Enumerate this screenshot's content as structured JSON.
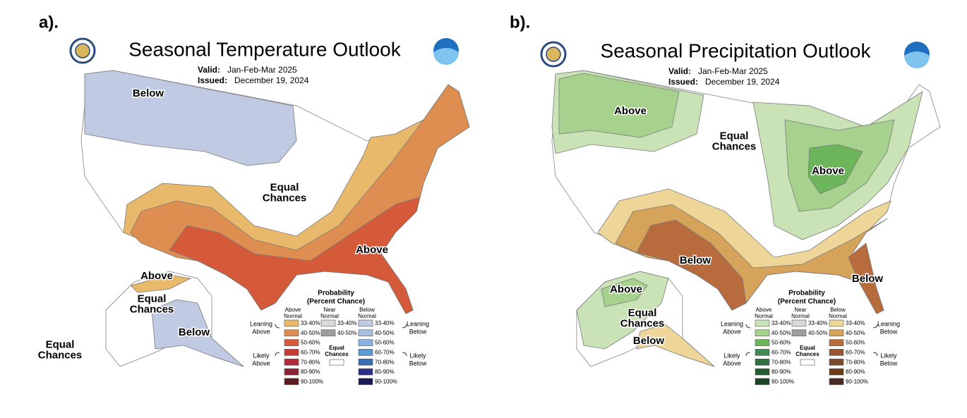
{
  "panels": [
    {
      "label": "a).",
      "title": "Seasonal Temperature Outlook",
      "valid_label": "Valid:",
      "valid": "Jan-Feb-Mar 2025",
      "issued_label": "Issued:",
      "issued": "December 19, 2024",
      "regions": [
        {
          "lines": [
            "Below"
          ]
        },
        {
          "lines": [
            "Equal",
            "Chances"
          ]
        },
        {
          "lines": [
            "Above"
          ]
        },
        {
          "lines": [
            "Above"
          ]
        },
        {
          "lines": [
            "Equal",
            "Chances"
          ]
        },
        {
          "lines": [
            "Below"
          ]
        },
        {
          "lines": [
            "Equal",
            "Chances"
          ]
        }
      ],
      "legend": {
        "title": "Probability",
        "subtitle": "(Percent Chance)",
        "columns": [
          {
            "header": [
              "Above",
              "Normal"
            ],
            "items": [
              {
                "label": "33-40%",
                "color": "#e8b96b"
              },
              {
                "label": "40-50%",
                "color": "#dd8e50"
              },
              {
                "label": "50-60%",
                "color": "#d55a3a"
              },
              {
                "label": "60-70%",
                "color": "#c63b36"
              },
              {
                "label": "70-80%",
                "color": "#b02a3a"
              },
              {
                "label": "80-90%",
                "color": "#8a2233"
              },
              {
                "label": "90-100%",
                "color": "#5c1a1f"
              }
            ]
          },
          {
            "header": [
              "Near",
              "Normal"
            ],
            "items": [
              {
                "label": "33-40%",
                "color": "#d9d9d9"
              },
              {
                "label": "40-50%",
                "color": "#9e9e9e"
              }
            ]
          },
          {
            "header": [
              "Below",
              "Normal"
            ],
            "items": [
              {
                "label": "33-40%",
                "color": "#c0cbe3"
              },
              {
                "label": "40-50%",
                "color": "#a9bfe0"
              },
              {
                "label": "50-60%",
                "color": "#88b3e0"
              },
              {
                "label": "60-70%",
                "color": "#5b9bd5"
              },
              {
                "label": "70-80%",
                "color": "#3a6db0"
              },
              {
                "label": "80-90%",
                "color": "#2d2d8a"
              },
              {
                "label": "90-100%",
                "color": "#1a1a55"
              }
            ]
          }
        ],
        "equal_chances": [
          "Equal",
          "Chances"
        ],
        "left_groups": [
          [
            "Leaning",
            "Above"
          ],
          [
            "Likely",
            "Above"
          ]
        ],
        "right_groups": [
          [
            "Leaning",
            "Below"
          ],
          [
            "Likely",
            "Below"
          ]
        ]
      }
    },
    {
      "label": "b).",
      "title": "Seasonal Precipitation Outlook",
      "valid_label": "Valid:",
      "valid": "Jan-Feb-Mar 2025",
      "issued_label": "Issued:",
      "issued": "December 19, 2024",
      "regions": [
        {
          "lines": [
            "Above"
          ]
        },
        {
          "lines": [
            "Equal",
            "Chances"
          ]
        },
        {
          "lines": [
            "Above"
          ]
        },
        {
          "lines": [
            "Below"
          ]
        },
        {
          "lines": [
            "Below"
          ]
        },
        {
          "lines": [
            "Above"
          ]
        },
        {
          "lines": [
            "Equal",
            "Chances"
          ]
        },
        {
          "lines": [
            "Below"
          ]
        }
      ],
      "legend": {
        "title": "Probability",
        "subtitle": "(Percent Chance)",
        "columns": [
          {
            "header": [
              "Above",
              "Normal"
            ],
            "items": [
              {
                "label": "33-40%",
                "color": "#c9e3b6"
              },
              {
                "label": "40-50%",
                "color": "#a7d28d"
              },
              {
                "label": "50-60%",
                "color": "#6cb55b"
              },
              {
                "label": "60-70%",
                "color": "#3f8a55"
              },
              {
                "label": "70-80%",
                "color": "#2f7040"
              },
              {
                "label": "80-90%",
                "color": "#245a30"
              },
              {
                "label": "90-100%",
                "color": "#1a4520"
              }
            ]
          },
          {
            "header": [
              "Near",
              "Normal"
            ],
            "items": [
              {
                "label": "33-40%",
                "color": "#d9d9d9"
              },
              {
                "label": "40-50%",
                "color": "#9e9e9e"
              }
            ]
          },
          {
            "header": [
              "Below",
              "Normal"
            ],
            "items": [
              {
                "label": "33-40%",
                "color": "#eed598"
              },
              {
                "label": "40-50%",
                "color": "#d6a35a"
              },
              {
                "label": "50-60%",
                "color": "#b86b3d"
              },
              {
                "label": "60-70%",
                "color": "#9a5535"
              },
              {
                "label": "70-80%",
                "color": "#7d4a30"
              },
              {
                "label": "80-90%",
                "color": "#6b3a16"
              },
              {
                "label": "90-100%",
                "color": "#4a2a25"
              }
            ]
          }
        ],
        "equal_chances": [
          "Equal",
          "Chances"
        ],
        "left_groups": [
          [
            "Leaning",
            "Above"
          ],
          [
            "Likely",
            "Above"
          ]
        ],
        "right_groups": [
          [
            "Leaning",
            "Below"
          ],
          [
            "Likely",
            "Below"
          ]
        ]
      }
    }
  ]
}
